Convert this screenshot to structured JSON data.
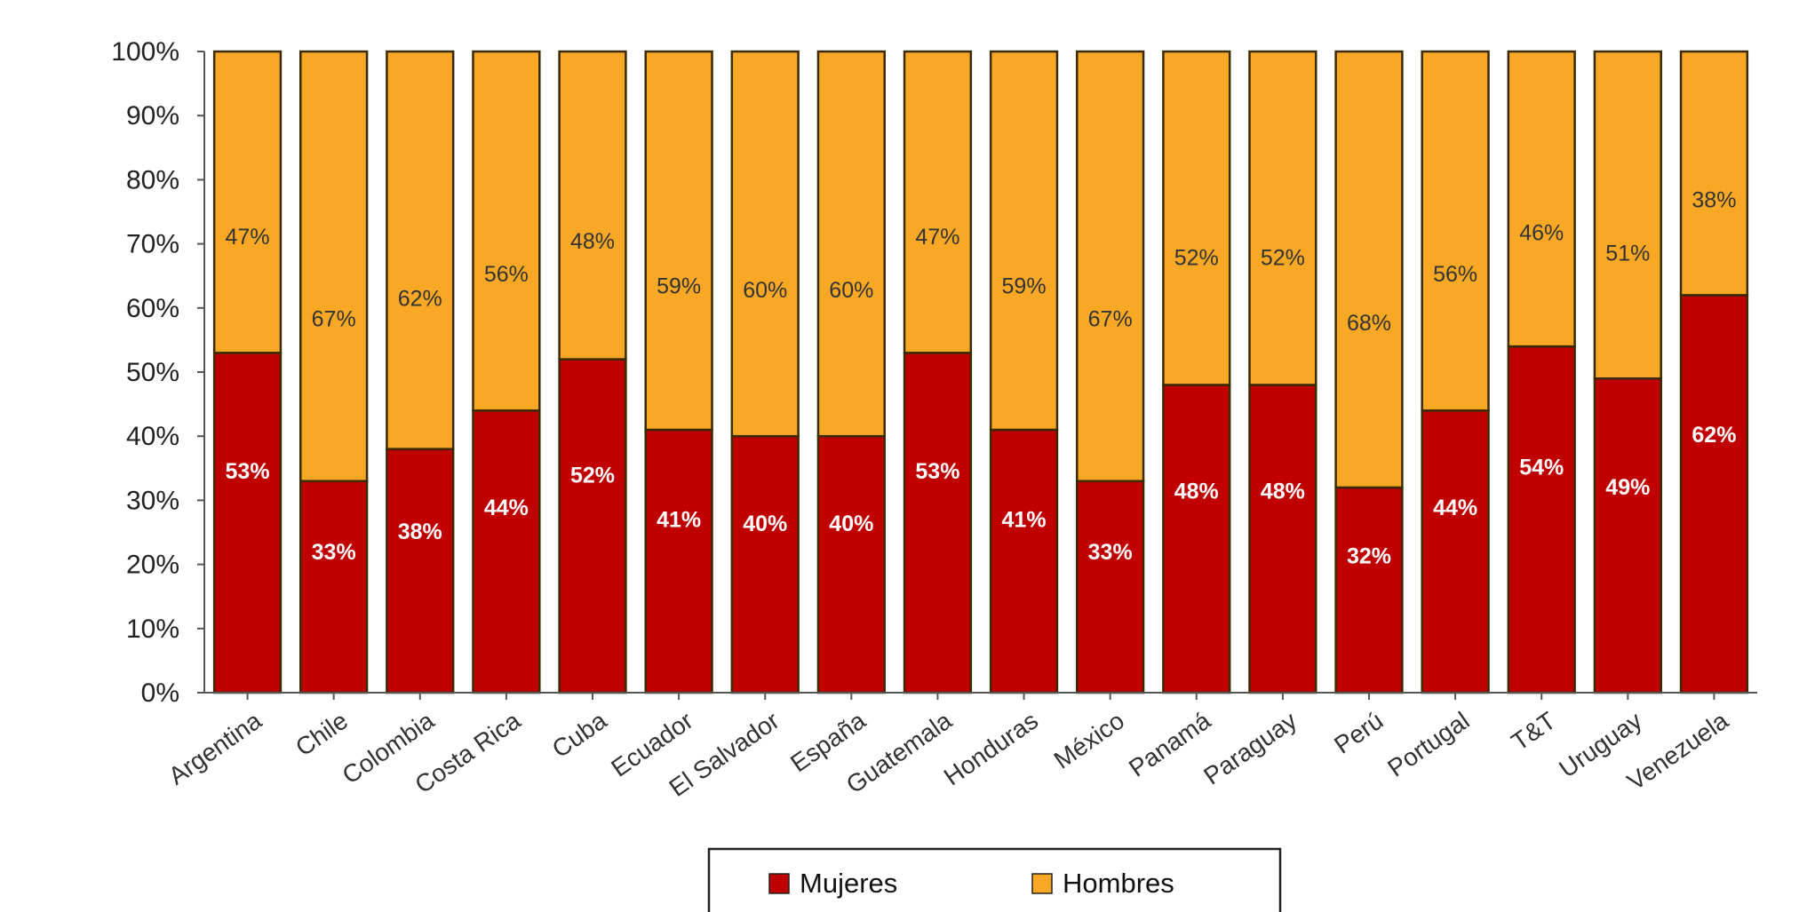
{
  "chart_data": {
    "type": "bar",
    "stacked": true,
    "percent_stacked": true,
    "categories": [
      "Argentina",
      "Chile",
      "Colombia",
      "Costa Rica",
      "Cuba",
      "Ecuador",
      "El Salvador",
      "España",
      "Guatemala",
      "Honduras",
      "México",
      "Panamá",
      "Paraguay",
      "Perú",
      "Portugal",
      "T&T",
      "Uruguay",
      "Venezuela"
    ],
    "series": [
      {
        "name": "Mujeres",
        "color": "#c00000",
        "values": [
          53,
          33,
          38,
          44,
          52,
          41,
          40,
          40,
          53,
          41,
          33,
          48,
          48,
          32,
          44,
          54,
          49,
          62
        ],
        "labels": [
          "53%",
          "33%",
          "38%",
          "44%",
          "52%",
          "41%",
          "40%",
          "40%",
          "53%",
          "41%",
          "33%",
          "48%",
          "48%",
          "32%",
          "44%",
          "54%",
          "49%",
          "62%"
        ]
      },
      {
        "name": "Hombres",
        "color": "#f9a825",
        "values": [
          47,
          67,
          62,
          56,
          48,
          59,
          60,
          60,
          47,
          59,
          67,
          52,
          52,
          68,
          56,
          46,
          51,
          38
        ],
        "labels": [
          "47%",
          "67%",
          "62%",
          "56%",
          "48%",
          "59%",
          "60%",
          "60%",
          "47%",
          "59%",
          "67%",
          "52%",
          "52%",
          "68%",
          "56%",
          "46%",
          "51%",
          "38%"
        ]
      }
    ],
    "yticks": [
      "0%",
      "10%",
      "20%",
      "30%",
      "40%",
      "50%",
      "60%",
      "70%",
      "80%",
      "90%",
      "100%"
    ],
    "ylim": [
      0,
      100
    ],
    "grid": false,
    "legend": "bottom-center",
    "xlabel": "",
    "ylabel": "",
    "title": ""
  }
}
